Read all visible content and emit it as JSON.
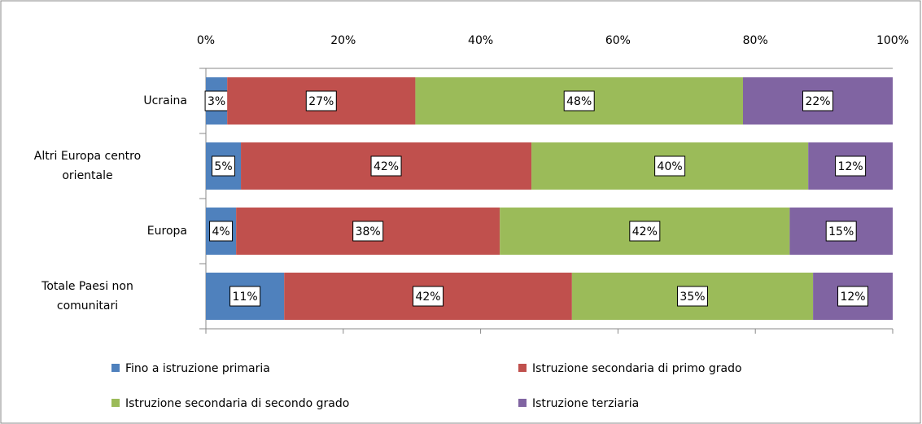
{
  "chart_data": {
    "type": "stacked_barh",
    "categories": [
      "Ucraina",
      "Altri Europa centro orientale",
      "Europa",
      "Totale Paesi non comunitari"
    ],
    "series": [
      {
        "name": "Fino a istruzione primaria",
        "color": "#4f81bd",
        "values": [
          3.1,
          5.1,
          4.4,
          11.4
        ],
        "value_labels": [
          "3%",
          "5%",
          "4%",
          "11%"
        ]
      },
      {
        "name": "Istruzione secondaria di primo grado",
        "color": "#c0504d",
        "values": [
          27.4,
          42.3,
          38.4,
          41.9
        ],
        "value_labels": [
          "27%",
          "42%",
          "38%",
          "42%"
        ]
      },
      {
        "name": "Istruzione secondaria di secondo grado",
        "color": "#9bbb59",
        "values": [
          47.7,
          40.3,
          42.2,
          35.1
        ],
        "value_labels": [
          "48%",
          "40%",
          "42%",
          "35%"
        ]
      },
      {
        "name": "Istruzione terziaria",
        "color": "#8064a2",
        "values": [
          21.8,
          12.3,
          15.0,
          11.6
        ],
        "value_labels": [
          "22%",
          "12%",
          "15%",
          "12%"
        ]
      }
    ],
    "xlim": [
      0,
      100
    ],
    "xticks": [
      {
        "value": 0,
        "label": "0%"
      },
      {
        "value": 20,
        "label": "20%"
      },
      {
        "value": 40,
        "label": "40%"
      },
      {
        "value": 60,
        "label": "60%"
      },
      {
        "value": 80,
        "label": "80%"
      },
      {
        "value": 100,
        "label": "100%"
      }
    ],
    "legend": "bottom"
  }
}
